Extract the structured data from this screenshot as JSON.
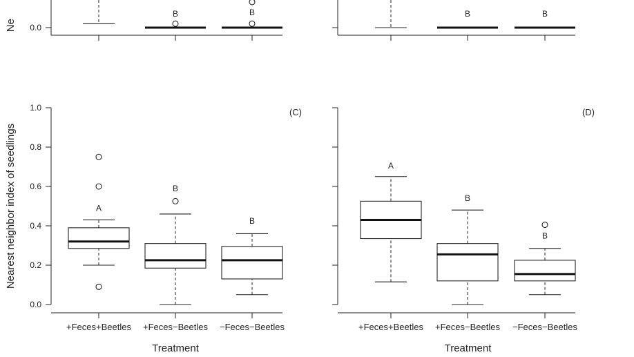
{
  "chart_data": [
    {
      "panel": "top-left",
      "type": "box",
      "partial": true,
      "ylabel": "Ne",
      "yticks": [
        0.0
      ],
      "tick_labels": [
        "0.0"
      ],
      "categories": [
        "+Feces+Beetles",
        "+Feces−Beetles",
        "−Feces−Beetles"
      ],
      "visible_y_range": [
        -0.04,
        0.13
      ],
      "boxes": [
        {
          "whisker_low": 0.02,
          "q1": null,
          "median": null,
          "q3": null,
          "whisker_high": null,
          "letter": "",
          "outliers": []
        },
        {
          "whisker_low": null,
          "q1": 0.0,
          "median": 0.0,
          "q3": 0.0,
          "whisker_high": null,
          "letter": "B",
          "outliers": [
            0.02
          ]
        },
        {
          "whisker_low": null,
          "q1": 0.0,
          "median": 0.0,
          "q3": 0.0,
          "whisker_high": null,
          "letter": "B",
          "outliers": [
            0.02,
            0.13
          ]
        }
      ]
    },
    {
      "panel": "top-right",
      "type": "box",
      "partial": true,
      "yticks": [
        0.0
      ],
      "tick_labels": [],
      "visible_y_range": [
        -0.04,
        0.13
      ],
      "boxes": [
        {
          "whisker_low": 0.0,
          "q1": null,
          "median": null,
          "q3": null,
          "whisker_high": null,
          "letter": "",
          "outliers": []
        },
        {
          "whisker_low": null,
          "q1": 0.0,
          "median": 0.0,
          "q3": 0.0,
          "whisker_high": null,
          "letter": "B",
          "outliers": []
        },
        {
          "whisker_low": null,
          "q1": 0.0,
          "median": 0.0,
          "q3": 0.0,
          "whisker_high": null,
          "letter": "B",
          "outliers": []
        }
      ]
    },
    {
      "panel": "(C)",
      "type": "box",
      "xlabel": "Treatment",
      "ylabel": "Nearest neighbor index of seedlings",
      "ylim": [
        0.0,
        1.0
      ],
      "yticks": [
        0.0,
        0.2,
        0.4,
        0.6,
        0.8,
        1.0
      ],
      "tick_labels": [
        "0.0",
        "0.2",
        "0.4",
        "0.6",
        "0.8",
        "1.0"
      ],
      "categories": [
        "+Feces+Beetles",
        "+Feces−Beetles",
        "−Feces−Beetles"
      ],
      "boxes": [
        {
          "whisker_low": 0.2,
          "q1": 0.285,
          "median": 0.32,
          "q3": 0.39,
          "whisker_high": 0.43,
          "letter": "A",
          "letter_y": 0.49,
          "outliers": [
            0.09,
            0.6,
            0.75
          ]
        },
        {
          "whisker_low": 0.0,
          "q1": 0.185,
          "median": 0.225,
          "q3": 0.31,
          "whisker_high": 0.46,
          "letter": "B",
          "letter_y": 0.59,
          "outliers": [
            0.525
          ]
        },
        {
          "whisker_low": 0.05,
          "q1": 0.13,
          "median": 0.225,
          "q3": 0.295,
          "whisker_high": 0.36,
          "letter": "B",
          "letter_y": 0.425,
          "outliers": []
        }
      ]
    },
    {
      "panel": "(D)",
      "type": "box",
      "xlabel": "Treatment",
      "ylim": [
        0.0,
        1.0
      ],
      "yticks": [
        0.0,
        0.2,
        0.4,
        0.6,
        0.8,
        1.0
      ],
      "tick_labels": [],
      "categories": [
        "+Feces+Beetles",
        "+Feces−Beetles",
        "−Feces−Beetles"
      ],
      "boxes": [
        {
          "whisker_low": 0.115,
          "q1": 0.335,
          "median": 0.43,
          "q3": 0.525,
          "whisker_high": 0.65,
          "letter": "A",
          "letter_y": 0.705,
          "outliers": []
        },
        {
          "whisker_low": 0.0,
          "q1": 0.12,
          "median": 0.255,
          "q3": 0.31,
          "whisker_high": 0.48,
          "letter": "B",
          "letter_y": 0.54,
          "outliers": []
        },
        {
          "whisker_low": 0.05,
          "q1": 0.12,
          "median": 0.155,
          "q3": 0.225,
          "whisker_high": 0.285,
          "letter": "B",
          "letter_y": 0.35,
          "outliers": [
            0.405
          ]
        }
      ]
    }
  ]
}
